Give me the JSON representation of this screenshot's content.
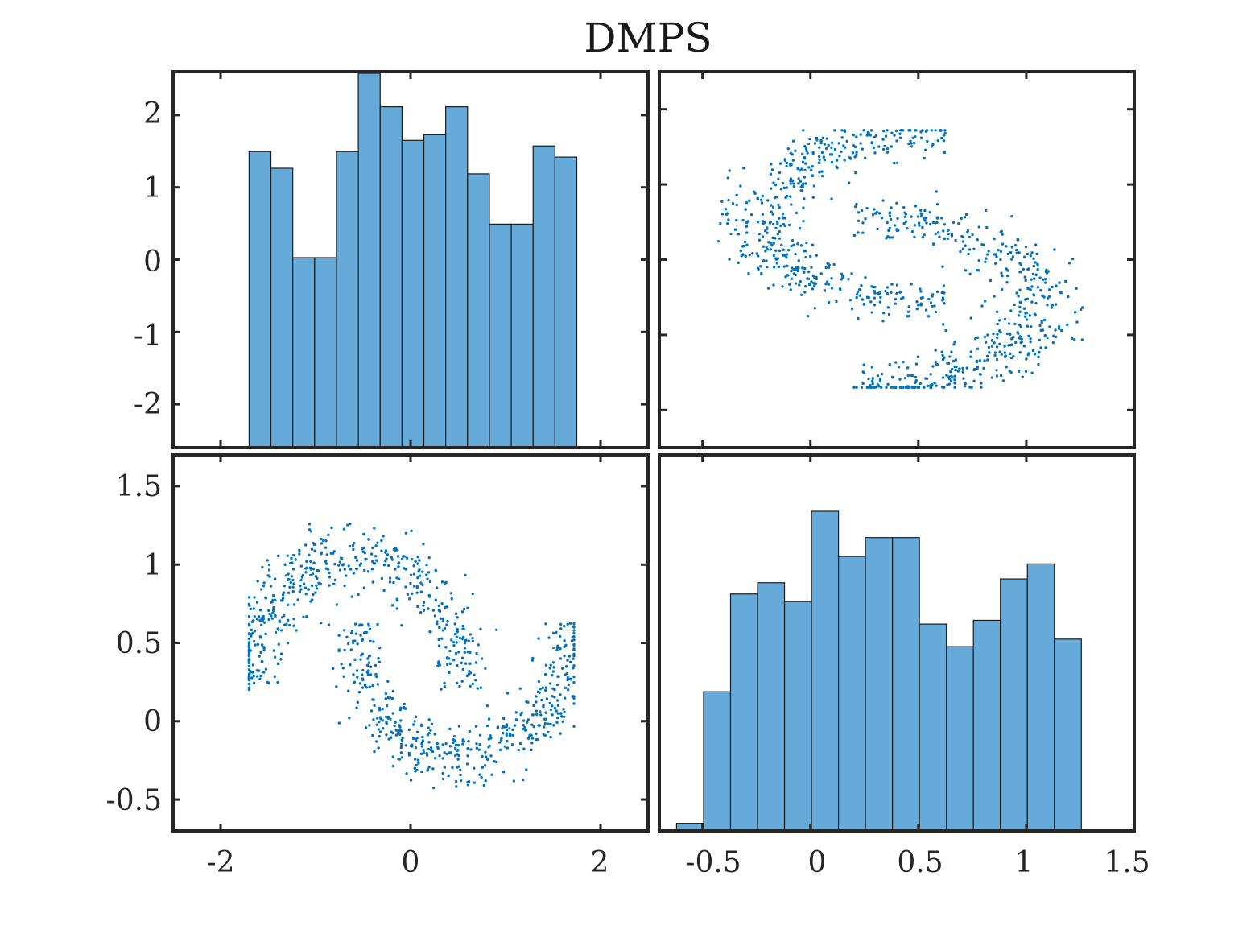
{
  "chart_data": {
    "title": "DMPS",
    "type": "scatter-matrix",
    "accent_color": "#0072BD",
    "bar_color": "#66AADA",
    "panels": [
      {
        "id": "hist-x",
        "type": "bar",
        "title": "",
        "xlim": [
          -2.5,
          2.5
        ],
        "ylim": [
          -2.6,
          2.6
        ],
        "y_ticks": [
          -2,
          -1,
          0,
          1,
          2
        ],
        "bin_edges": [
          -1.7,
          -1.47,
          -1.24,
          -1.01,
          -0.78,
          -0.55,
          -0.32,
          -0.09,
          0.14,
          0.37,
          0.6,
          0.83,
          1.06,
          1.29,
          1.52,
          1.75
        ],
        "counts": [
          53,
          50,
          34,
          34,
          53,
          67,
          61,
          55,
          56,
          61,
          49,
          40,
          40,
          54,
          52
        ],
        "max_count": 67
      },
      {
        "id": "scatter-yx",
        "type": "scatter",
        "title": "",
        "xlim": [
          -0.7,
          1.5
        ],
        "ylim": [
          -2.5,
          2.5
        ],
        "description": "x axis shows second variable, y axis shows first variable",
        "n_points": 1000
      },
      {
        "id": "scatter-xy",
        "type": "scatter",
        "title": "",
        "xlim": [
          -2.5,
          2.5
        ],
        "ylim": [
          -0.7,
          1.7
        ],
        "x_ticks": [
          -2,
          0,
          2
        ],
        "y_ticks": [
          -0.5,
          0,
          0.5,
          1,
          1.5
        ],
        "n_points": 1000
      },
      {
        "id": "hist-y",
        "type": "bar",
        "title": "",
        "xlim": [
          -0.7,
          1.5
        ],
        "x_ticks": [
          -0.5,
          0,
          0.5,
          1,
          1.5
        ],
        "bin_edges": [
          -0.62,
          -0.495,
          -0.37,
          -0.245,
          -0.12,
          0.005,
          0.13,
          0.255,
          0.38,
          0.505,
          0.63,
          0.755,
          0.88,
          1.005,
          1.13,
          1.255
        ],
        "counts": [
          2,
          37,
          63,
          66,
          61,
          85,
          73,
          78,
          78,
          55,
          49,
          56,
          67,
          71,
          51
        ],
        "max_count": 85
      }
    ],
    "tick_labels": {
      "hist_x_y": [
        "-2",
        "-1",
        "0",
        "1",
        "2"
      ],
      "scatter_xy_y": [
        "-0.5",
        "0",
        "0.5",
        "1",
        "1.5"
      ],
      "bottom_left_x": [
        "-2",
        "0",
        "2"
      ],
      "bottom_right_x": [
        "-0.5",
        "0",
        "0.5",
        "1",
        "1.5"
      ]
    }
  }
}
